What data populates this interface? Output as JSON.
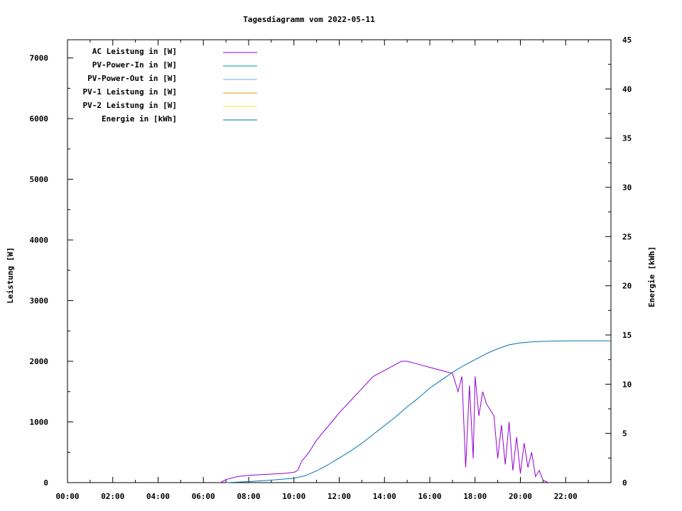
{
  "chart_data": {
    "type": "line",
    "title": "Tagesdiagramm vom 2022-05-11",
    "ylabel_left": "Leistung [W]",
    "ylabel_right": "Energie [kWh]",
    "x_range": [
      "00:00",
      "24:00"
    ],
    "x_ticks": [
      "00:00",
      "02:00",
      "04:00",
      "06:00",
      "08:00",
      "10:00",
      "12:00",
      "14:00",
      "16:00",
      "18:00",
      "20:00",
      "22:00"
    ],
    "y_left_range": [
      0,
      7300
    ],
    "y_left_ticks": [
      "0",
      "1000",
      "2000",
      "3000",
      "4000",
      "5000",
      "6000",
      "7000"
    ],
    "y_right_range": [
      0,
      45
    ],
    "y_right_ticks": [
      "0",
      "5",
      "10",
      "15",
      "20",
      "25",
      "30",
      "35",
      "40",
      "45"
    ],
    "legend_position": "top-left",
    "grid": false,
    "series": [
      {
        "name": "AC Leistung in [W]",
        "axis": "left",
        "color": "#9400d3",
        "x": [
          "06:45",
          "07:00",
          "07:30",
          "08:00",
          "08:30",
          "09:00",
          "09:30",
          "10:00",
          "10:10",
          "10:20",
          "10:40",
          "11:00",
          "11:20",
          "11:40",
          "12:00",
          "12:30",
          "13:00",
          "13:30",
          "14:00",
          "14:30",
          "14:45",
          "15:00",
          "15:30",
          "16:00",
          "16:30",
          "17:00",
          "17:15",
          "17:25",
          "17:35",
          "17:45",
          "17:55",
          "18:00",
          "18:10",
          "18:20",
          "18:30",
          "18:40",
          "18:50",
          "19:00",
          "19:10",
          "19:20",
          "19:30",
          "19:40",
          "19:50",
          "20:00",
          "20:10",
          "20:20",
          "20:30",
          "20:40",
          "20:50",
          "21:00",
          "21:10",
          "21:15"
        ],
        "values": [
          0,
          50,
          100,
          120,
          130,
          140,
          150,
          170,
          200,
          350,
          500,
          700,
          850,
          1000,
          1150,
          1350,
          1550,
          1750,
          1850,
          1950,
          2000,
          2000,
          1950,
          1900,
          1850,
          1800,
          1500,
          1750,
          250,
          1600,
          400,
          1750,
          1100,
          1500,
          1300,
          1200,
          1100,
          400,
          950,
          300,
          1000,
          200,
          750,
          150,
          650,
          250,
          500,
          100,
          200,
          40,
          10,
          0
        ]
      },
      {
        "name": "PV-Power-In in [W]",
        "axis": "left",
        "color": "#009e73",
        "x": [],
        "values": []
      },
      {
        "name": "PV-Power-Out in [W]",
        "axis": "left",
        "color": "#56b4e9",
        "x": [],
        "values": []
      },
      {
        "name": "PV-1 Leistung in [W]",
        "axis": "left",
        "color": "#e69f00",
        "x": [],
        "values": []
      },
      {
        "name": "PV-2 Leistung in [W]",
        "axis": "left",
        "color": "#f0e442",
        "x": [],
        "values": []
      },
      {
        "name": "Energie in [kWh]",
        "axis": "right",
        "color": "#0072b2",
        "x": [
          "07:00",
          "08:00",
          "09:00",
          "10:00",
          "10:30",
          "11:00",
          "11:30",
          "12:00",
          "12:30",
          "13:00",
          "13:30",
          "14:00",
          "14:30",
          "15:00",
          "15:30",
          "16:00",
          "16:30",
          "17:00",
          "17:30",
          "18:00",
          "18:30",
          "19:00",
          "19:30",
          "20:00",
          "20:30",
          "21:00",
          "22:00",
          "24:00"
        ],
        "values": [
          0,
          0.1,
          0.25,
          0.45,
          0.7,
          1.2,
          1.8,
          2.5,
          3.2,
          4.0,
          4.9,
          5.8,
          6.7,
          7.7,
          8.6,
          9.6,
          10.4,
          11.2,
          11.9,
          12.5,
          13.1,
          13.6,
          14.0,
          14.2,
          14.3,
          14.35,
          14.4,
          14.4
        ]
      }
    ]
  }
}
